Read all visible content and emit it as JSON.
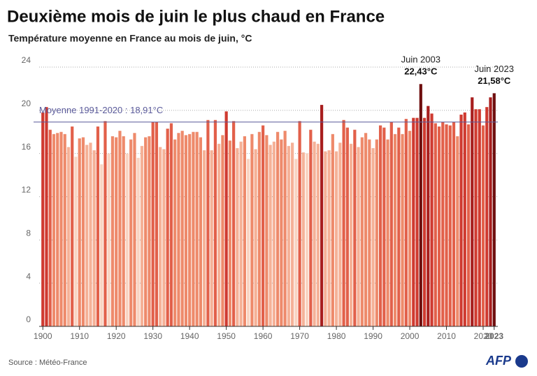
{
  "chart_data": {
    "type": "bar",
    "title": "Deuxième mois de juin le plus chaud en France",
    "subtitle": "Température moyenne en France au mois de juin, °C",
    "source": "Source : Météo-France",
    "logo": "AFP",
    "x": [
      1900,
      1901,
      1902,
      1903,
      1904,
      1905,
      1906,
      1907,
      1908,
      1909,
      1910,
      1911,
      1912,
      1913,
      1914,
      1915,
      1916,
      1917,
      1918,
      1919,
      1920,
      1921,
      1922,
      1923,
      1924,
      1925,
      1926,
      1927,
      1928,
      1929,
      1930,
      1931,
      1932,
      1933,
      1934,
      1935,
      1936,
      1937,
      1938,
      1939,
      1940,
      1941,
      1942,
      1943,
      1944,
      1945,
      1946,
      1947,
      1948,
      1949,
      1950,
      1951,
      1952,
      1953,
      1954,
      1955,
      1956,
      1957,
      1958,
      1959,
      1960,
      1961,
      1962,
      1963,
      1964,
      1965,
      1966,
      1967,
      1968,
      1969,
      1970,
      1971,
      1972,
      1973,
      1974,
      1975,
      1976,
      1977,
      1978,
      1979,
      1980,
      1981,
      1982,
      1983,
      1984,
      1985,
      1986,
      1987,
      1988,
      1989,
      1990,
      1991,
      1992,
      1993,
      1994,
      1995,
      1996,
      1997,
      1998,
      1999,
      2000,
      2001,
      2002,
      2003,
      2004,
      2005,
      2006,
      2007,
      2008,
      2009,
      2010,
      2011,
      2012,
      2013,
      2014,
      2015,
      2016,
      2017,
      2018,
      2019,
      2020,
      2021,
      2022,
      2023
    ],
    "values": [
      19.8,
      20.3,
      18.2,
      17.8,
      17.9,
      18.0,
      17.8,
      16.6,
      18.5,
      15.7,
      17.4,
      17.5,
      16.8,
      17.0,
      16.3,
      18.5,
      15.0,
      19.0,
      16.0,
      17.6,
      17.5,
      18.1,
      17.6,
      16.0,
      17.3,
      17.9,
      15.6,
      16.7,
      17.5,
      17.6,
      18.9,
      18.9,
      16.6,
      16.4,
      18.3,
      18.8,
      17.3,
      17.9,
      18.1,
      17.7,
      17.8,
      18.0,
      18.0,
      17.5,
      16.3,
      19.1,
      16.3,
      19.1,
      16.9,
      17.7,
      19.9,
      17.2,
      19.0,
      16.5,
      17.1,
      17.6,
      15.5,
      17.8,
      16.4,
      18.0,
      18.6,
      17.7,
      16.8,
      17.1,
      18.0,
      17.3,
      18.1,
      16.7,
      17.0,
      15.5,
      19.0,
      16.1,
      16.0,
      18.2,
      17.1,
      16.9,
      20.5,
      16.2,
      16.3,
      17.8,
      16.2,
      17.0,
      19.1,
      18.4,
      16.9,
      18.2,
      16.6,
      17.5,
      17.9,
      17.3,
      16.5,
      17.3,
      18.6,
      18.4,
      17.3,
      18.9,
      17.8,
      18.4,
      17.8,
      19.2,
      18.1,
      19.3,
      19.3,
      22.43,
      19.3,
      20.4,
      19.7,
      18.8,
      18.5,
      18.9,
      18.7,
      18.6,
      18.9,
      17.6,
      19.6,
      19.8,
      18.7,
      21.2,
      20.1,
      20.1,
      18.6,
      20.3,
      21.2,
      21.58
    ],
    "color_scale": [
      "#f9d4c2",
      "#f5b197",
      "#ee8a6b",
      "#e2604a",
      "#cf3a30",
      "#a81e1e",
      "#6e0e0e"
    ],
    "xlim": [
      1899,
      2024
    ],
    "xticks": [
      1900,
      1910,
      1920,
      1930,
      1940,
      1950,
      1960,
      1970,
      1980,
      1990,
      2000,
      2010,
      2020,
      2023
    ],
    "ylim": [
      0,
      24
    ],
    "yticks": [
      0,
      4,
      8,
      12,
      16,
      20,
      24
    ],
    "grid": true,
    "reference_line": {
      "value": 18.91,
      "label": "Moyenne 1991-2020 : 18,91°C",
      "color": "#5b5b9b"
    },
    "annotations": [
      {
        "x": 2003,
        "label": "Juin 2003",
        "value_label": "22,43°C"
      },
      {
        "x": 2023,
        "label": "Juin 2023",
        "value_label": "21,58°C"
      }
    ]
  }
}
